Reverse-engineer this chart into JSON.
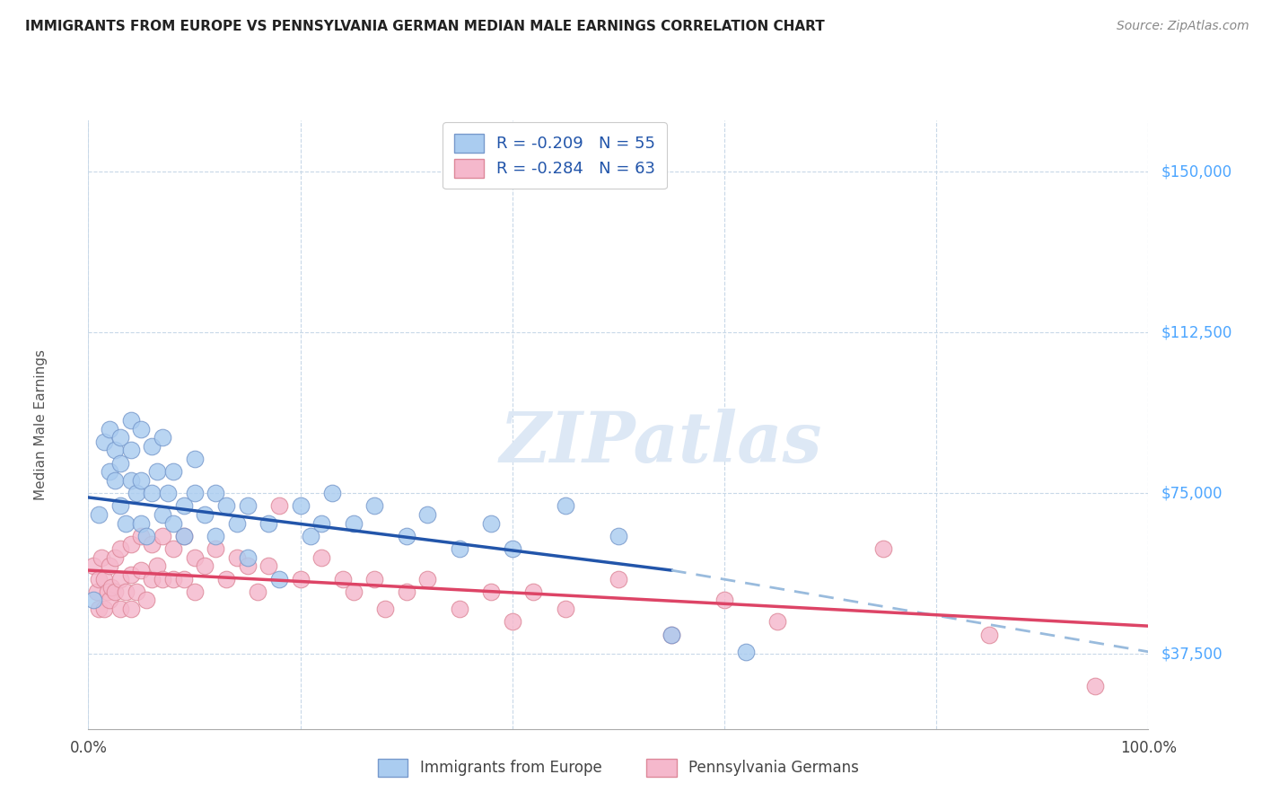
{
  "title": "IMMIGRANTS FROM EUROPE VS PENNSYLVANIA GERMAN MEDIAN MALE EARNINGS CORRELATION CHART",
  "source": "Source: ZipAtlas.com",
  "ylabel": "Median Male Earnings",
  "y_ticks": [
    0,
    37500,
    75000,
    112500,
    150000
  ],
  "y_tick_labels": [
    "",
    "$37,500",
    "$75,000",
    "$112,500",
    "$150,000"
  ],
  "y_tick_color": "#4da6ff",
  "xlim": [
    0.0,
    1.0
  ],
  "ylim": [
    20000,
    162000
  ],
  "legend_text1": "R = -0.209   N = 55",
  "legend_text2": "R = -0.284   N = 63",
  "series1_label": "Immigrants from Europe",
  "series2_label": "Pennsylvania Germans",
  "series1_color": "#aaccf0",
  "series2_color": "#f5b8cc",
  "series1_edge": "#7799cc",
  "series2_edge": "#dd8899",
  "trend1_color": "#2255aa",
  "trend2_color": "#dd4466",
  "trend_dashed_color": "#99bbdd",
  "watermark_text": "ZIPatlas",
  "watermark_color": "#dde8f5",
  "background_color": "#ffffff",
  "grid_color": "#c8d8e8",
  "blue_scatter_x": [
    0.005,
    0.01,
    0.015,
    0.02,
    0.02,
    0.025,
    0.025,
    0.03,
    0.03,
    0.03,
    0.035,
    0.04,
    0.04,
    0.04,
    0.045,
    0.05,
    0.05,
    0.05,
    0.055,
    0.06,
    0.06,
    0.065,
    0.07,
    0.07,
    0.075,
    0.08,
    0.08,
    0.09,
    0.09,
    0.1,
    0.1,
    0.11,
    0.12,
    0.12,
    0.13,
    0.14,
    0.15,
    0.15,
    0.17,
    0.18,
    0.2,
    0.21,
    0.22,
    0.23,
    0.25,
    0.27,
    0.3,
    0.32,
    0.35,
    0.38,
    0.4,
    0.45,
    0.5,
    0.55,
    0.62
  ],
  "blue_scatter_y": [
    50000,
    70000,
    87000,
    80000,
    90000,
    85000,
    78000,
    88000,
    82000,
    72000,
    68000,
    85000,
    78000,
    92000,
    75000,
    90000,
    78000,
    68000,
    65000,
    86000,
    75000,
    80000,
    88000,
    70000,
    75000,
    80000,
    68000,
    72000,
    65000,
    83000,
    75000,
    70000,
    75000,
    65000,
    72000,
    68000,
    72000,
    60000,
    68000,
    55000,
    72000,
    65000,
    68000,
    75000,
    68000,
    72000,
    65000,
    70000,
    62000,
    68000,
    62000,
    72000,
    65000,
    42000,
    38000
  ],
  "pink_scatter_x": [
    0.005,
    0.008,
    0.01,
    0.01,
    0.012,
    0.015,
    0.015,
    0.018,
    0.02,
    0.02,
    0.022,
    0.025,
    0.025,
    0.03,
    0.03,
    0.03,
    0.035,
    0.04,
    0.04,
    0.04,
    0.045,
    0.05,
    0.05,
    0.055,
    0.06,
    0.06,
    0.065,
    0.07,
    0.07,
    0.08,
    0.08,
    0.09,
    0.09,
    0.1,
    0.1,
    0.11,
    0.12,
    0.13,
    0.14,
    0.15,
    0.16,
    0.17,
    0.18,
    0.2,
    0.22,
    0.24,
    0.25,
    0.27,
    0.28,
    0.3,
    0.32,
    0.35,
    0.38,
    0.4,
    0.42,
    0.45,
    0.5,
    0.55,
    0.6,
    0.65,
    0.75,
    0.85,
    0.95
  ],
  "pink_scatter_y": [
    58000,
    52000,
    55000,
    48000,
    60000,
    55000,
    48000,
    52000,
    58000,
    50000,
    53000,
    60000,
    52000,
    62000,
    55000,
    48000,
    52000,
    63000,
    56000,
    48000,
    52000,
    65000,
    57000,
    50000,
    63000,
    55000,
    58000,
    65000,
    55000,
    62000,
    55000,
    65000,
    55000,
    60000,
    52000,
    58000,
    62000,
    55000,
    60000,
    58000,
    52000,
    58000,
    72000,
    55000,
    60000,
    55000,
    52000,
    55000,
    48000,
    52000,
    55000,
    48000,
    52000,
    45000,
    52000,
    48000,
    55000,
    42000,
    50000,
    45000,
    62000,
    42000,
    30000
  ]
}
